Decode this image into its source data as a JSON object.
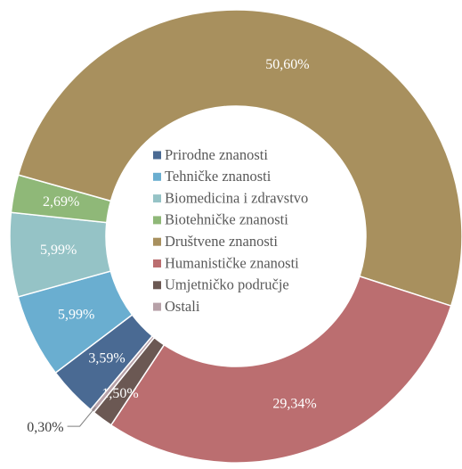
{
  "chart_data": {
    "type": "donut",
    "categories": [
      "Prirodne znanosti",
      "Tehničke znanosti",
      "Biomedicina i zdravstvo",
      "Biotehničke znanosti",
      "Društvene znanosti",
      "Humanističke znanosti",
      "Umjetničko područje",
      "Ostali"
    ],
    "values": [
      3.59,
      5.99,
      5.99,
      2.69,
      50.6,
      29.34,
      1.5,
      0.3
    ],
    "value_labels": [
      "3,59%",
      "5,99%",
      "5,99%",
      "2,69%",
      "50,60%",
      "29,34%",
      "1,50%",
      "0,30%"
    ],
    "colors": [
      "#4a6a93",
      "#6aaed0",
      "#95c3c6",
      "#8fb878",
      "#a8905e",
      "#bb6e70",
      "#6b5853",
      "#b7a1a8"
    ],
    "legend": "center"
  }
}
